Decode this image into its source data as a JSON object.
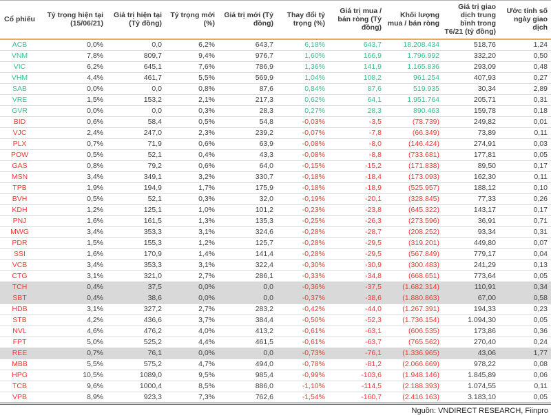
{
  "table": {
    "columns": [
      "Cổ phiếu",
      "Tỷ trọng hiện tại (15/06/21)",
      "Giá trị hiện tại (Tỷ đồng)",
      "Tỷ trọng mới (%)",
      "Giá trị mới (Tỷ đồng)",
      "Thay đổi tỷ trọng (%)",
      "Giá trị mua / bán ròng (Tỷ đồng)",
      "Khối lượng mua / bán ròng",
      "Giá trị giao dịch trung bình trong T6/21 (tỷ đồng)",
      "Ước tính số ngày giao dịch"
    ],
    "rows": [
      {
        "ticker": "ACB",
        "trend": "up",
        "highlight": false,
        "cells": [
          "0,0%",
          "0,0",
          "6,2%",
          "643,7",
          "6,18%",
          "643,7",
          "18.208.434",
          "518,76",
          "1,24"
        ]
      },
      {
        "ticker": "VNM",
        "trend": "up",
        "highlight": false,
        "cells": [
          "7,8%",
          "809,7",
          "9,4%",
          "976,7",
          "1,60%",
          "166,9",
          "1.796.992",
          "332,20",
          "0,50"
        ]
      },
      {
        "ticker": "VIC",
        "trend": "up",
        "highlight": false,
        "cells": [
          "6,2%",
          "645,1",
          "7,6%",
          "786,9",
          "1,36%",
          "141,9",
          "1.165.836",
          "293,09",
          "0,48"
        ]
      },
      {
        "ticker": "VHM",
        "trend": "up",
        "highlight": false,
        "cells": [
          "4,4%",
          "461,7",
          "5,5%",
          "569,9",
          "1,04%",
          "108,2",
          "961.254",
          "407,93",
          "0,27"
        ]
      },
      {
        "ticker": "SAB",
        "trend": "up",
        "highlight": false,
        "cells": [
          "0,0%",
          "0,0",
          "0,8%",
          "87,6",
          "0,84%",
          "87,6",
          "519.935",
          "30,34",
          "2,89"
        ]
      },
      {
        "ticker": "VRE",
        "trend": "up",
        "highlight": false,
        "cells": [
          "1,5%",
          "153,2",
          "2,1%",
          "217,3",
          "0,62%",
          "64,1",
          "1.951.764",
          "205,71",
          "0,31"
        ]
      },
      {
        "ticker": "GVR",
        "trend": "up",
        "highlight": false,
        "cells": [
          "0,0%",
          "0,0",
          "0,3%",
          "28,3",
          "0,27%",
          "28,3",
          "890.463",
          "159,78",
          "0,18"
        ]
      },
      {
        "ticker": "BID",
        "trend": "down",
        "highlight": false,
        "cells": [
          "0,6%",
          "58,4",
          "0,5%",
          "54,8",
          "-0,03%",
          "-3,5",
          "(78.739)",
          "249,82",
          "0,01"
        ]
      },
      {
        "ticker": "VJC",
        "trend": "down",
        "highlight": false,
        "cells": [
          "2,4%",
          "247,0",
          "2,3%",
          "239,2",
          "-0,07%",
          "-7,8",
          "(66.349)",
          "73,89",
          "0,11"
        ]
      },
      {
        "ticker": "PLX",
        "trend": "down",
        "highlight": false,
        "cells": [
          "0,7%",
          "71,9",
          "0,6%",
          "63,9",
          "-0,08%",
          "-8,0",
          "(146.424)",
          "274,91",
          "0,03"
        ]
      },
      {
        "ticker": "POW",
        "trend": "down",
        "highlight": false,
        "cells": [
          "0,5%",
          "52,1",
          "0,4%",
          "43,3",
          "-0,08%",
          "-8,8",
          "(733.681)",
          "177,81",
          "0,05"
        ]
      },
      {
        "ticker": "GAS",
        "trend": "down",
        "highlight": false,
        "cells": [
          "0,8%",
          "79,2",
          "0,6%",
          "64,0",
          "-0,15%",
          "-15,2",
          "(171.838)",
          "89,50",
          "0,17"
        ]
      },
      {
        "ticker": "MSN",
        "trend": "down",
        "highlight": false,
        "cells": [
          "3,4%",
          "349,1",
          "3,2%",
          "330,7",
          "-0,18%",
          "-18,4",
          "(173.093)",
          "162,30",
          "0,11"
        ]
      },
      {
        "ticker": "TPB",
        "trend": "down",
        "highlight": false,
        "cells": [
          "1,9%",
          "194,9",
          "1,7%",
          "175,9",
          "-0,18%",
          "-18,9",
          "(525.957)",
          "188,12",
          "0,10"
        ]
      },
      {
        "ticker": "BVH",
        "trend": "down",
        "highlight": false,
        "cells": [
          "0,5%",
          "52,1",
          "0,3%",
          "32,0",
          "-0,19%",
          "-20,1",
          "(328.845)",
          "77,33",
          "0,26"
        ]
      },
      {
        "ticker": "KDH",
        "trend": "down",
        "highlight": false,
        "cells": [
          "1,2%",
          "125,1",
          "1,0%",
          "101,2",
          "-0,23%",
          "-23,8",
          "(645.322)",
          "143,17",
          "0,17"
        ]
      },
      {
        "ticker": "PNJ",
        "trend": "down",
        "highlight": false,
        "cells": [
          "1,6%",
          "161,5",
          "1,3%",
          "135,3",
          "-0,25%",
          "-26,3",
          "(273.596)",
          "36,91",
          "0,71"
        ]
      },
      {
        "ticker": "MWG",
        "trend": "down",
        "highlight": false,
        "cells": [
          "3,4%",
          "353,3",
          "3,1%",
          "324,6",
          "-0,28%",
          "-28,7",
          "(208.252)",
          "93,34",
          "0,31"
        ]
      },
      {
        "ticker": "PDR",
        "trend": "down",
        "highlight": false,
        "cells": [
          "1,5%",
          "155,3",
          "1,2%",
          "125,7",
          "-0,28%",
          "-29,5",
          "(319.201)",
          "449,80",
          "0,07"
        ]
      },
      {
        "ticker": "SSI",
        "trend": "down",
        "highlight": false,
        "cells": [
          "1,6%",
          "170,9",
          "1,4%",
          "141,4",
          "-0,28%",
          "-29,5",
          "(567.849)",
          "779,17",
          "0,04"
        ]
      },
      {
        "ticker": "VCB",
        "trend": "down",
        "highlight": false,
        "cells": [
          "3,4%",
          "353,3",
          "3,1%",
          "322,4",
          "-0,30%",
          "-30,9",
          "(300.483)",
          "241,29",
          "0,13"
        ]
      },
      {
        "ticker": "CTG",
        "trend": "down",
        "highlight": false,
        "cells": [
          "3,1%",
          "321,0",
          "2,7%",
          "286,1",
          "-0,33%",
          "-34,8",
          "(668.651)",
          "773,64",
          "0,05"
        ]
      },
      {
        "ticker": "TCH",
        "trend": "down",
        "highlight": true,
        "cells": [
          "0,4%",
          "37,5",
          "0,0%",
          "0,0",
          "-0,36%",
          "-37,5",
          "(1.682.314)",
          "110,91",
          "0,34"
        ]
      },
      {
        "ticker": "SBT",
        "trend": "down",
        "highlight": true,
        "cells": [
          "0,4%",
          "38,6",
          "0,0%",
          "0,0",
          "-0,37%",
          "-38,6",
          "(1.880.863)",
          "67,00",
          "0,58"
        ]
      },
      {
        "ticker": "HDB",
        "trend": "down",
        "highlight": false,
        "cells": [
          "3,1%",
          "327,2",
          "2,7%",
          "283,2",
          "-0,42%",
          "-44,0",
          "(1.267.391)",
          "194,33",
          "0,23"
        ]
      },
      {
        "ticker": "STB",
        "trend": "down",
        "highlight": false,
        "cells": [
          "4,2%",
          "436,6",
          "3,7%",
          "384,4",
          "-0,50%",
          "-52,3",
          "(1.736.154)",
          "1.094,30",
          "0,05"
        ]
      },
      {
        "ticker": "NVL",
        "trend": "down",
        "highlight": false,
        "cells": [
          "4,6%",
          "476,2",
          "4,0%",
          "413,2",
          "-0,61%",
          "-63,1",
          "(606.535)",
          "173,86",
          "0,36"
        ]
      },
      {
        "ticker": "FPT",
        "trend": "down",
        "highlight": false,
        "cells": [
          "5,0%",
          "525,2",
          "4,4%",
          "461,5",
          "-0,61%",
          "-63,7",
          "(765.562)",
          "270,40",
          "0,24"
        ]
      },
      {
        "ticker": "REE",
        "trend": "down",
        "highlight": true,
        "cells": [
          "0,7%",
          "76,1",
          "0,0%",
          "0,0",
          "-0,73%",
          "-76,1",
          "(1.336.965)",
          "43,06",
          "1,77"
        ]
      },
      {
        "ticker": "MBB",
        "trend": "down",
        "highlight": false,
        "cells": [
          "5,5%",
          "575,2",
          "4,7%",
          "494,0",
          "-0,78%",
          "-81,2",
          "(2.066.669)",
          "978,22",
          "0,08"
        ]
      },
      {
        "ticker": "HPG",
        "trend": "down",
        "highlight": false,
        "cells": [
          "10,5%",
          "1089,0",
          "9,5%",
          "985,4",
          "-0,99%",
          "-103,6",
          "(1.948.146)",
          "1.845,89",
          "0,06"
        ]
      },
      {
        "ticker": "TCB",
        "trend": "down",
        "highlight": false,
        "cells": [
          "9,6%",
          "1000,4",
          "8,5%",
          "886,0",
          "-1,10%",
          "-114,5",
          "(2.188.393)",
          "1.074,55",
          "0,11"
        ]
      },
      {
        "ticker": "VPB",
        "trend": "down",
        "highlight": false,
        "cells": [
          "8,9%",
          "923,3",
          "7,3%",
          "762,6",
          "-1,54%",
          "-160,7",
          "(2.416.163)",
          "3.183,10",
          "0,05"
        ]
      }
    ],
    "colored_cell_indexes": [
      4,
      5,
      6
    ]
  },
  "footer": {
    "source": "Nguồn: VNDIRECT RESEARCH, Fiinpro"
  },
  "colors": {
    "positive": "#31c48d",
    "negative": "#ff3333",
    "header_rule": "#e9a85a",
    "row_highlight": "#d9d9d9",
    "text": "#404040"
  }
}
